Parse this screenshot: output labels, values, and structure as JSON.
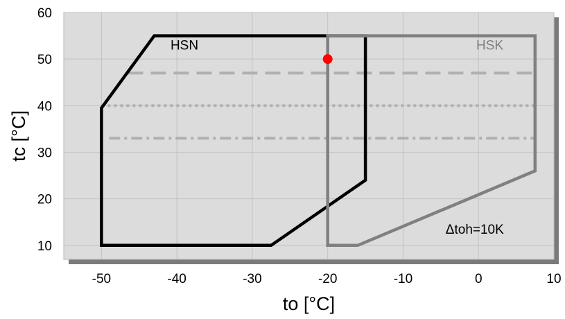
{
  "chart_data": {
    "type": "line",
    "xlabel": "to [°C]",
    "ylabel": "tc [°C]",
    "xlim": [
      -55,
      10
    ],
    "ylim": [
      7,
      60
    ],
    "x_ticks": [
      -50,
      -40,
      -30,
      -20,
      -10,
      0,
      10
    ],
    "y_ticks": [
      10,
      20,
      30,
      40,
      50,
      60
    ],
    "grid": true,
    "background_color": "#dcdcdc",
    "series": [
      {
        "name": "HSN",
        "color": "#000000",
        "closed": true,
        "points": [
          [
            -43,
            55
          ],
          [
            -15,
            55
          ],
          [
            -15,
            24
          ],
          [
            -27.5,
            10
          ],
          [
            -50,
            10
          ],
          [
            -50,
            39.5
          ]
        ]
      },
      {
        "name": "HSK",
        "color": "#808080",
        "closed": true,
        "points": [
          [
            -20,
            55
          ],
          [
            7.5,
            55
          ],
          [
            7.5,
            26
          ],
          [
            -16,
            10
          ],
          [
            -20,
            10
          ]
        ]
      }
    ],
    "reference_lines": [
      {
        "y": 47,
        "x_start": -46.5,
        "x_end": 7.5,
        "style": "dashed",
        "color": "#b0b0b0"
      },
      {
        "y": 40,
        "x_start": -50,
        "x_end": 7.5,
        "style": "dotted",
        "color": "#b0b0b0"
      },
      {
        "y": 33,
        "x_start": -49,
        "x_end": 7.5,
        "style": "dashdot",
        "color": "#b0b0b0"
      }
    ],
    "markers": [
      {
        "x": -20,
        "y": 50,
        "color": "#ff0000"
      }
    ],
    "annotations": [
      {
        "text": "HSN",
        "x": -39,
        "y": 52,
        "color": "#000000"
      },
      {
        "text": "HSK",
        "x": 1.5,
        "y": 52,
        "color": "#808080"
      },
      {
        "text": "Δtoh=10K",
        "x": -0.5,
        "y": 12.5,
        "color": "#000000"
      }
    ]
  }
}
